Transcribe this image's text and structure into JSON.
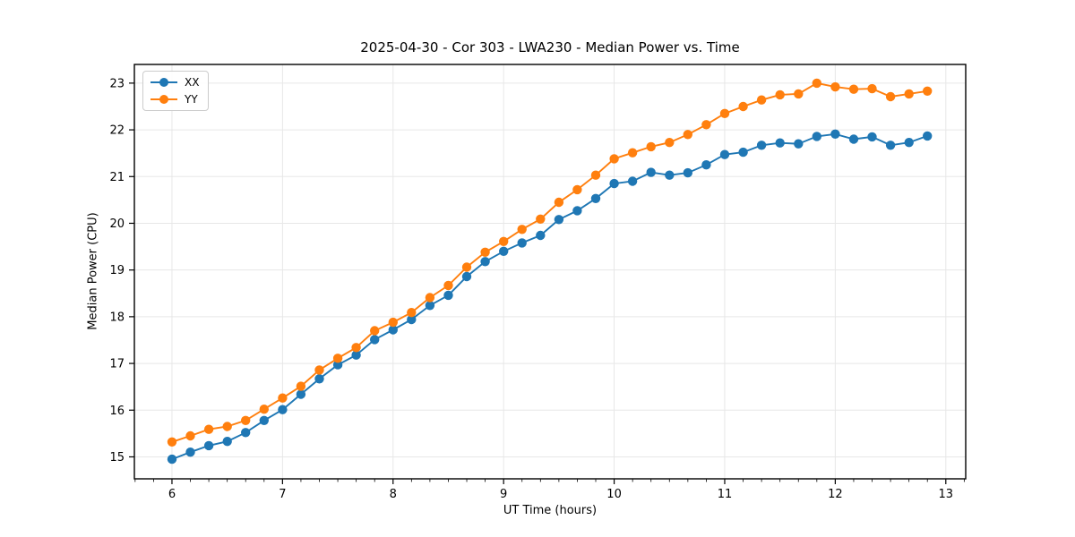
{
  "chart_data": {
    "type": "line",
    "title": "2025-04-30 - Cor 303 - LWA230 - Median Power vs. Time",
    "xlabel": "UT Time (hours)",
    "ylabel": "Median Power (CPU)",
    "xlim": [
      5.66,
      13.18
    ],
    "ylim": [
      14.53,
      23.4
    ],
    "xticks": [
      6,
      7,
      8,
      9,
      10,
      11,
      12,
      13
    ],
    "yticks": [
      15,
      16,
      17,
      18,
      19,
      20,
      21,
      22,
      23
    ],
    "x_minor_step": 0.166667,
    "grid": true,
    "legend_position": "upper-left",
    "x": [
      6.0,
      6.1667,
      6.3333,
      6.5,
      6.6667,
      6.8333,
      7.0,
      7.1667,
      7.3333,
      7.5,
      7.6667,
      7.8333,
      8.0,
      8.1667,
      8.3333,
      8.5,
      8.6667,
      8.8333,
      9.0,
      9.1667,
      9.3333,
      9.5,
      9.6667,
      9.8333,
      10.0,
      10.1667,
      10.3333,
      10.5,
      10.6667,
      10.8333,
      11.0,
      11.1667,
      11.3333,
      11.5,
      11.6667,
      11.8333,
      12.0,
      12.1667,
      12.3333,
      12.5,
      12.6667,
      12.8333
    ],
    "series": [
      {
        "name": "XX",
        "color": "#1f77b4",
        "values": [
          14.95,
          15.1,
          15.24,
          15.33,
          15.52,
          15.78,
          16.01,
          16.34,
          16.67,
          16.97,
          17.18,
          17.51,
          17.72,
          17.94,
          18.24,
          18.46,
          18.86,
          19.18,
          19.4,
          19.58,
          19.74,
          20.08,
          20.27,
          20.53,
          20.85,
          20.9,
          21.09,
          21.03,
          21.08,
          21.25,
          21.47,
          21.52,
          21.67,
          21.72,
          21.7,
          21.86,
          21.91,
          21.8,
          21.85,
          21.67,
          21.73,
          21.87
        ]
      },
      {
        "name": "YY",
        "color": "#ff7f0e",
        "values": [
          15.32,
          15.45,
          15.59,
          15.65,
          15.78,
          16.02,
          16.26,
          16.51,
          16.86,
          17.11,
          17.34,
          17.7,
          17.88,
          18.09,
          18.41,
          18.67,
          19.06,
          19.38,
          19.61,
          19.87,
          20.09,
          20.45,
          20.72,
          21.03,
          21.38,
          21.51,
          21.64,
          21.73,
          21.9,
          22.11,
          22.35,
          22.5,
          22.64,
          22.75,
          22.77,
          23.0,
          22.92,
          22.87,
          22.88,
          22.71,
          22.77,
          22.83
        ]
      }
    ]
  },
  "colors": {
    "background": "#ffffff",
    "grid": "#e7e7e7",
    "spine": "#000000",
    "tick_label": "#000000",
    "series_xx": "#1f77b4",
    "series_yy": "#ff7f0e"
  }
}
